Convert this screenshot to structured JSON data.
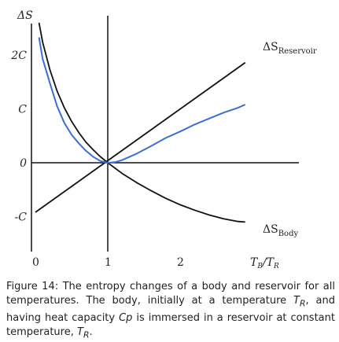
{
  "chart_data": {
    "type": "line",
    "ylabel": "ΔS",
    "x_ticks": [
      {
        "value": 0,
        "label": "0"
      },
      {
        "value": 1,
        "label": "1"
      },
      {
        "value": 2,
        "label": "2"
      }
    ],
    "x_axis_label": {
      "main": "T",
      "sub1": "B",
      "sep": "/T",
      "sub2": "R"
    },
    "y_ticks": [
      {
        "value": 2,
        "label": "2C"
      },
      {
        "value": 1,
        "label": "C"
      },
      {
        "value": 0,
        "label": "0"
      },
      {
        "value": -1,
        "label": "-C"
      }
    ],
    "xlim": [
      -0.05,
      2.95
    ],
    "ylim": [
      -1.85,
      2.65
    ],
    "series": [
      {
        "key": "reservoir",
        "label_main": "ΔS",
        "label_sub": "Reservoir",
        "color": "#111111",
        "x": [
          0.0,
          2.9
        ],
        "y": [
          -0.92,
          1.86
        ]
      },
      {
        "key": "body",
        "label_main": "ΔS",
        "label_sub": "Body",
        "color": "#111111",
        "x": [
          0.05,
          0.1,
          0.2,
          0.3,
          0.4,
          0.5,
          0.6,
          0.7,
          0.8,
          0.9,
          1.0,
          1.2,
          1.4,
          1.6,
          1.8,
          2.0,
          2.2,
          2.4,
          2.6,
          2.8,
          2.9
        ],
        "y": [
          2.6,
          2.24,
          1.73,
          1.33,
          1.02,
          0.77,
          0.56,
          0.38,
          0.24,
          0.11,
          0.0,
          -0.2,
          -0.37,
          -0.52,
          -0.66,
          -0.78,
          -0.88,
          -0.97,
          -1.04,
          -1.09,
          -1.1
        ]
      },
      {
        "key": "total",
        "color": "#3a6fd2",
        "x": [
          0.05,
          0.1,
          0.2,
          0.3,
          0.4,
          0.5,
          0.6,
          0.7,
          0.8,
          0.9,
          1.0,
          1.1,
          1.2,
          1.4,
          1.6,
          1.8,
          2.0,
          2.2,
          2.4,
          2.6,
          2.8,
          2.9
        ],
        "y": [
          2.33,
          1.93,
          1.48,
          1.05,
          0.74,
          0.52,
          0.36,
          0.22,
          0.11,
          0.03,
          0.0,
          0.01,
          0.05,
          0.17,
          0.31,
          0.46,
          0.58,
          0.71,
          0.82,
          0.93,
          1.02,
          1.08
        ]
      }
    ]
  },
  "caption": {
    "lead": "Figure 14: The entropy changes of a body and reservoir for all temperatures. The body, initially at a temperature ",
    "t_main": "T",
    "t_sub": "R",
    "mid": ", and having heat capacity ",
    "cp": "Cp",
    "tail": " is immersed in a reservoir at constant temperature, ",
    "t2_main": "T",
    "t2_sub": "R",
    "end": "."
  }
}
